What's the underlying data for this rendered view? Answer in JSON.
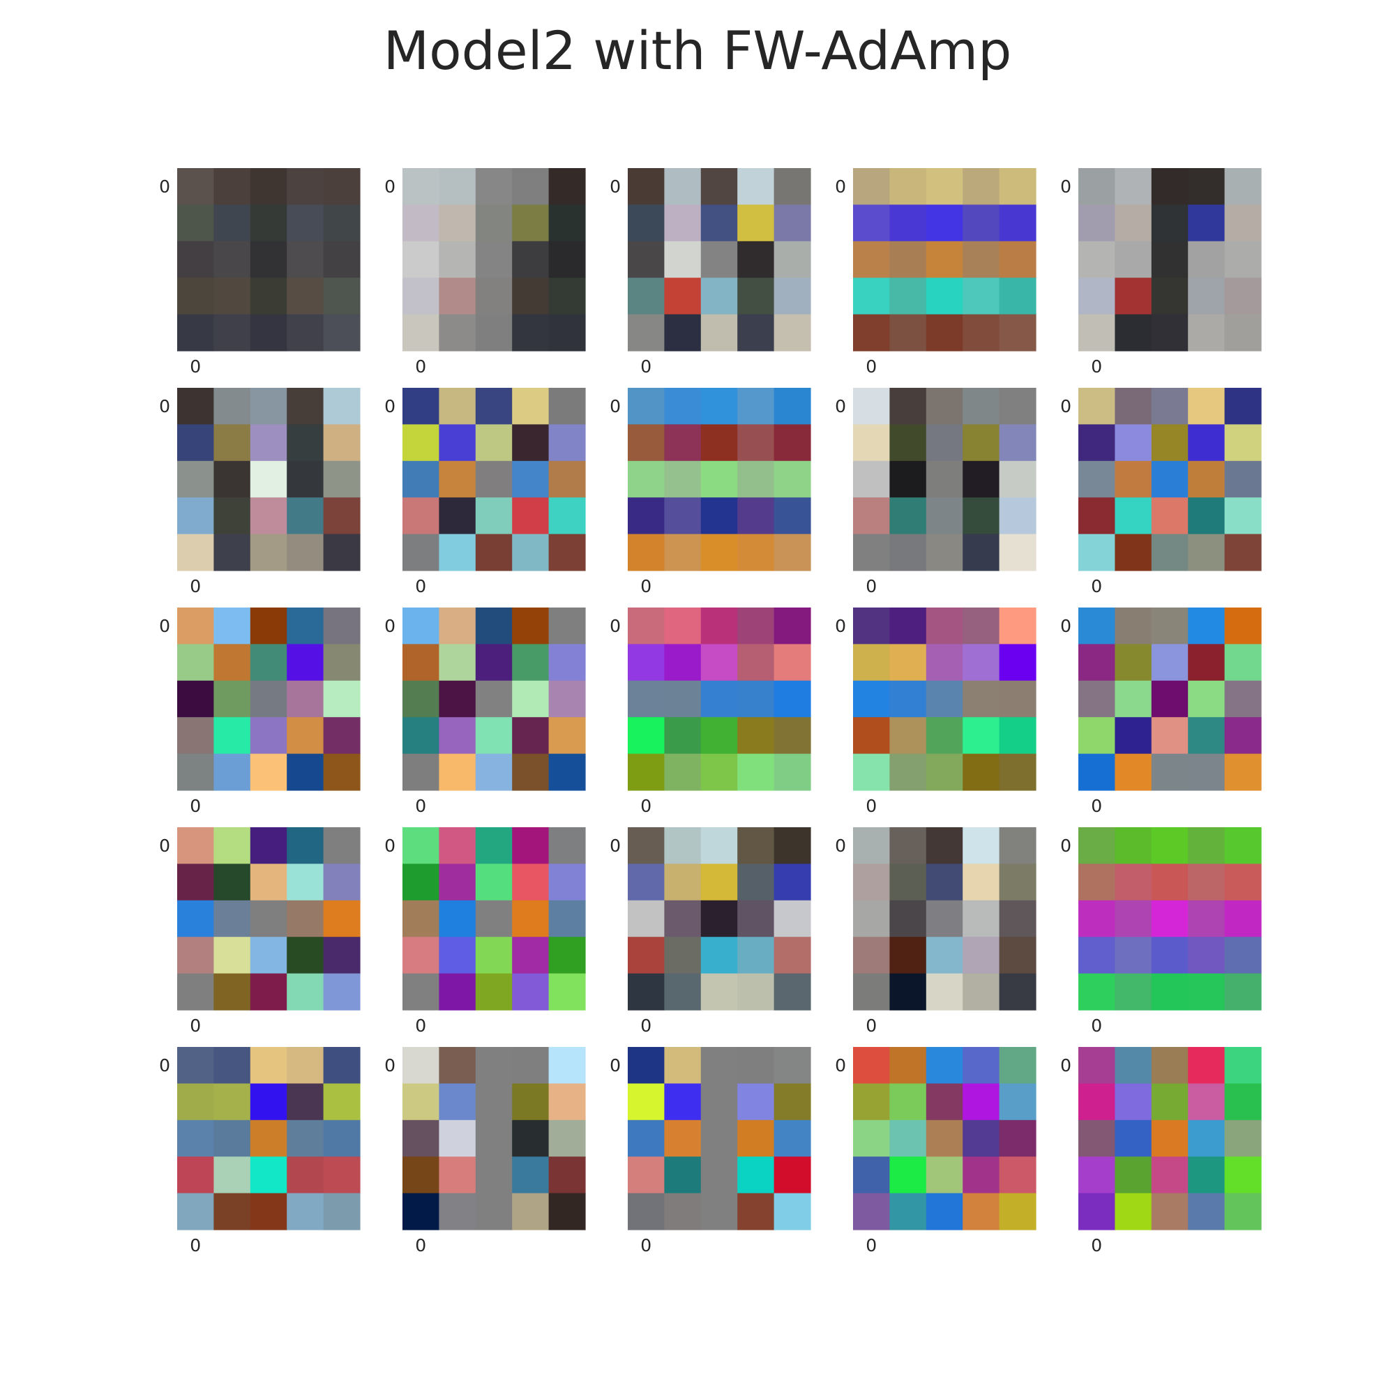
{
  "title": "Model2 with FW-AdAmp",
  "chart_data": {
    "type": "heatmap",
    "title": "Model2 with FW-AdAmp",
    "rows": 5,
    "cols": 5,
    "tick_label": "0",
    "panels": [
      {
        "cells": [
          [
            "#5b514d",
            "#4b403c",
            "#3f3531",
            "#4c4240",
            "#4c403c"
          ],
          [
            "#4e554a",
            "#404650",
            "#353a36",
            "#474c56",
            "#414648"
          ],
          [
            "#433f43",
            "#49474a",
            "#323133",
            "#4e4c4e",
            "#434143"
          ],
          [
            "#4c463c",
            "#514840",
            "#3b3d34",
            "#574d44",
            "#4f5650"
          ],
          [
            "#373a45",
            "#3f404a",
            "#343540",
            "#40414b",
            "#4d4f58"
          ]
        ]
      },
      {
        "cells": [
          [
            "#bbc2c4",
            "#b5bec1",
            "#878787",
            "#7f7f7f",
            "#342b28"
          ],
          [
            "#c2bac4",
            "#c0b8ae",
            "#838580",
            "#7b7d45",
            "#2a3230"
          ],
          [
            "#cacbca",
            "#b5b6b4",
            "#848484",
            "#3d3c3e",
            "#2a292b"
          ],
          [
            "#c2c1c9",
            "#b08b89",
            "#838080",
            "#443b34",
            "#343a34"
          ],
          [
            "#c9c6be",
            "#8c8b8a",
            "#7f7f7f",
            "#33353f",
            "#30333c"
          ]
        ]
      },
      {
        "cells": [
          [
            "#4b3b35",
            "#afbcc2",
            "#514641",
            "#c2d2d9",
            "#777673"
          ],
          [
            "#3c4959",
            "#bcb0c2",
            "#435182",
            "#d1bf42",
            "#7b79a7"
          ],
          [
            "#4a4749",
            "#d1d4cf",
            "#838383",
            "#302c2e",
            "#aaaeab"
          ],
          [
            "#5b8583",
            "#c44235",
            "#82b4c6",
            "#434f42",
            "#a1b0bf"
          ],
          [
            "#878785",
            "#2b2f41",
            "#c0bcae",
            "#3b3f4e",
            "#c5bfb0"
          ]
        ]
      },
      {
        "cells": [
          [
            "#b8a77e",
            "#c9b67a",
            "#d2c07e",
            "#bba97c",
            "#ccbb7b"
          ],
          [
            "#5a4ccd",
            "#4a38d4",
            "#4334e4",
            "#5348be",
            "#4937d2"
          ],
          [
            "#bb814b",
            "#a87e55",
            "#c6843a",
            "#a98158",
            "#b97d45"
          ],
          [
            "#39d1c0",
            "#48b8a7",
            "#28d3bf",
            "#4dc8bb",
            "#39b6a7"
          ],
          [
            "#7f3f2c",
            "#7d5141",
            "#7c3b28",
            "#824c3c",
            "#855848"
          ]
        ]
      },
      {
        "cells": [
          [
            "#9ba0a2",
            "#afb3b6",
            "#332b29",
            "#332e2c",
            "#a8b0b2"
          ],
          [
            "#a29dae",
            "#b5aca5",
            "#2f3336",
            "#30389b",
            "#b5aca5"
          ],
          [
            "#b4b5b3",
            "#a8a9a8",
            "#313131",
            "#a1a2a1",
            "#acadab"
          ],
          [
            "#b1b6c6",
            "#a33333",
            "#353531",
            "#9fa3aa",
            "#a59a9b"
          ],
          [
            "#c1beb5",
            "#2b2d33",
            "#303036",
            "#abaaa6",
            "#a09f9b"
          ]
        ]
      },
      {
        "cells": [
          [
            "#3d3432",
            "#838b8f",
            "#8796a1",
            "#483e39",
            "#afcad7"
          ],
          [
            "#374479",
            "#8b7b44",
            "#9d8fc0",
            "#363e3f",
            "#cfb083"
          ],
          [
            "#8b918c",
            "#3a3533",
            "#e1f0e2",
            "#34383d",
            "#8f9488"
          ],
          [
            "#80aace",
            "#3e4238",
            "#bf8c9b",
            "#437a88",
            "#7b433a"
          ],
          [
            "#dccdae",
            "#3e404c",
            "#a39b86",
            "#948d7f",
            "#3a3944"
          ]
        ]
      },
      {
        "cells": [
          [
            "#323e84",
            "#c7b781",
            "#394581",
            "#dccb83",
            "#7b7b7b"
          ],
          [
            "#c3d53b",
            "#4a3fd5",
            "#bfc883",
            "#39262f",
            "#8184c6"
          ],
          [
            "#427cb7",
            "#c7843d",
            "#807e7e",
            "#4484c8",
            "#b27c4a"
          ],
          [
            "#c97877",
            "#2d293b",
            "#7fcdba",
            "#d23e47",
            "#3ed2c3"
          ],
          [
            "#7d7e7f",
            "#82cce0",
            "#7a3f34",
            "#80b8c5",
            "#7c4134"
          ]
        ]
      },
      {
        "cells": [
          [
            "#5294c6",
            "#3a8cd6",
            "#3192dc",
            "#5599cc",
            "#2b86d1"
          ],
          [
            "#985b3c",
            "#8c3357",
            "#8d3021",
            "#974f52",
            "#882a3a"
          ],
          [
            "#8fd38a",
            "#94c18d",
            "#8adb82",
            "#93bf8d",
            "#8fd389"
          ],
          [
            "#392a85",
            "#554e9a",
            "#233390",
            "#543b8c",
            "#395496"
          ],
          [
            "#d3832b",
            "#cd9350",
            "#da8e29",
            "#d48b37",
            "#c99256"
          ]
        ]
      },
      {
        "cells": [
          [
            "#d6dee4",
            "#483e3b",
            "#7b746f",
            "#808788",
            "#808080"
          ],
          [
            "#e3d7b5",
            "#414b2c",
            "#757880",
            "#888233",
            "#8386b9"
          ],
          [
            "#bfc0bf",
            "#1c1b1e",
            "#7e7e7c",
            "#221c25",
            "#c6ccc5"
          ],
          [
            "#ba807f",
            "#2f7d75",
            "#7d8588",
            "#354b3b",
            "#b6c8dc"
          ],
          [
            "#808080",
            "#77797d",
            "#8a8883",
            "#363c4d",
            "#e5e0d1"
          ]
        ]
      },
      {
        "cells": [
          [
            "#cbbd83",
            "#7a6a77",
            "#7a7a93",
            "#e6c87f",
            "#2e3383"
          ],
          [
            "#3f287e",
            "#8c8ade",
            "#968626",
            "#3e2ed1",
            "#d1d27e"
          ],
          [
            "#798896",
            "#c17a40",
            "#2b7ed6",
            "#bf7f3b",
            "#6b7892"
          ],
          [
            "#8a2a31",
            "#35d3c2",
            "#dc7868",
            "#1f7b79",
            "#89dec7"
          ],
          [
            "#84d3d7",
            "#803419",
            "#748884",
            "#8b907f",
            "#7f4438"
          ]
        ]
      },
      {
        "cells": [
          [
            "#db9d64",
            "#7cbcf0",
            "#8a3a07",
            "#2a6a99",
            "#777480"
          ],
          [
            "#98cb88",
            "#c07732",
            "#428c77",
            "#5510e6",
            "#868872"
          ],
          [
            "#3c0c40",
            "#6f9a60",
            "#767a83",
            "#a7759c",
            "#b7ecc0"
          ],
          [
            "#8a7575",
            "#26eaa5",
            "#8c75c2",
            "#d28e44",
            "#732f65"
          ],
          [
            "#7d8383",
            "#6c9ed6",
            "#fbc176",
            "#164890",
            "#8f561c"
          ]
        ]
      },
      {
        "cells": [
          [
            "#6bb3ec",
            "#d9ae84",
            "#214c7c",
            "#954208",
            "#7f7f80"
          ],
          [
            "#b0642a",
            "#add59c",
            "#4c1f7d",
            "#489a67",
            "#8281d6"
          ],
          [
            "#547d52",
            "#4b1444",
            "#818181",
            "#b2eab6",
            "#a885b0"
          ],
          [
            "#26807f",
            "#9765bd",
            "#80e1b2",
            "#662550",
            "#d99b50"
          ],
          [
            "#7e7e7e",
            "#f8b96b",
            "#86b3e0",
            "#7b512b",
            "#154f99"
          ]
        ]
      },
      {
        "cells": [
          [
            "#c96b7b",
            "#e0657f",
            "#b83179",
            "#9e4378",
            "#851a7e"
          ],
          [
            "#9239e4",
            "#9a1bc9",
            "#c54cc4",
            "#b65e72",
            "#e47c7b"
          ],
          [
            "#6b8299",
            "#6c8296",
            "#3680d2",
            "#3680cc",
            "#1f7de1"
          ],
          [
            "#18f35d",
            "#3a9c4a",
            "#41b134",
            "#8a7b1f",
            "#807334"
          ],
          [
            "#7f9d12",
            "#80b361",
            "#7dc64a",
            "#80e17c",
            "#80cd86"
          ]
        ]
      },
      {
        "cells": [
          [
            "#513381",
            "#4f1f80",
            "#a45581",
            "#96607f",
            "#fe9a80"
          ],
          [
            "#ceb04d",
            "#e0af52",
            "#a660b3",
            "#a06fd3",
            "#6b00f0"
          ],
          [
            "#2383e1",
            "#3280d4",
            "#5a84ae",
            "#8c8073",
            "#8c7f72"
          ],
          [
            "#b04e1e",
            "#ad925b",
            "#52a45b",
            "#2eef8f",
            "#14cf88"
          ],
          [
            "#85e3ab",
            "#84a06e",
            "#83a95d",
            "#826c14",
            "#7f6f2f"
          ]
        ]
      },
      {
        "cells": [
          [
            "#2b8ad6",
            "#897e72",
            "#8a8579",
            "#238ae3",
            "#d56c10"
          ],
          [
            "#8a2883",
            "#87892e",
            "#8a95dd",
            "#8b212c",
            "#72d88e"
          ],
          [
            "#857483",
            "#8bd98c",
            "#6e0d6d",
            "#8bdb84",
            "#857485"
          ],
          [
            "#8fd76a",
            "#2e2190",
            "#e19183",
            "#2e8985",
            "#8a2a8a"
          ],
          [
            "#1670d4",
            "#e38826",
            "#7c858a",
            "#7c858b",
            "#e0902e"
          ]
        ]
      },
      {
        "cells": [
          [
            "#d8957e",
            "#b4dc80",
            "#461e7e",
            "#216783",
            "#7f7f7f"
          ],
          [
            "#682448",
            "#26492b",
            "#e4b67d",
            "#9ae2d8",
            "#8381bc"
          ],
          [
            "#2981dc",
            "#6b7f98",
            "#7f7f7f",
            "#967a67",
            "#dd7d20"
          ],
          [
            "#b38080",
            "#d8df98",
            "#83b6e3",
            "#284b24",
            "#4a2a6a"
          ],
          [
            "#7f7f7f",
            "#7f6423",
            "#7e1c4b",
            "#84d9b5",
            "#8097d7"
          ]
        ]
      },
      {
        "cells": [
          [
            "#5ddd7d",
            "#d15882",
            "#22a781",
            "#a4157b",
            "#7e7f80"
          ],
          [
            "#1e9c2d",
            "#9f2d9d",
            "#55de7e",
            "#e85663",
            "#8181d5"
          ],
          [
            "#a27d5a",
            "#1f80df",
            "#808080",
            "#df7d1e",
            "#5d7fa2"
          ],
          [
            "#d77d81",
            "#5f5de3",
            "#82d854",
            "#a12ba4",
            "#2fa021"
          ],
          [
            "#808080",
            "#7e17a6",
            "#7fa721",
            "#8259d7",
            "#80e25d"
          ]
        ]
      },
      {
        "cells": [
          [
            "#675d53",
            "#b1c5c5",
            "#bfd6da",
            "#625645",
            "#3d342b"
          ],
          [
            "#6169aa",
            "#c8b06f",
            "#d4b837",
            "#566068",
            "#363dae"
          ],
          [
            "#c2c2c2",
            "#6b5a6b",
            "#2b202d",
            "#605364",
            "#c7c8cb"
          ],
          [
            "#aa433b",
            "#6b6d64",
            "#38afcc",
            "#68adc2",
            "#b46e69"
          ],
          [
            "#2e3642",
            "#59676f",
            "#c4c5b1",
            "#bbbfac",
            "#5a676f"
          ]
        ]
      },
      {
        "cells": [
          [
            "#a9b1b0",
            "#67605b",
            "#433835",
            "#cfe3ea",
            "#81817d"
          ],
          [
            "#ada09e",
            "#5c5f54",
            "#414b74",
            "#e6d5ae",
            "#7c7b66"
          ],
          [
            "#a7a8a5",
            "#4b4649",
            "#7e7e83",
            "#b9bbbb",
            "#5f5759"
          ],
          [
            "#9e7b79",
            "#502213",
            "#84b7cc",
            "#b0a5b5",
            "#5d4b41"
          ],
          [
            "#7c7c7b",
            "#0b162a",
            "#d6d5c6",
            "#b1b0a2",
            "#393b44"
          ]
        ]
      },
      {
        "cells": [
          [
            "#6aac46",
            "#5bbb2b",
            "#5cc926",
            "#62b23b",
            "#58c82f"
          ],
          [
            "#b07260",
            "#c25e6a",
            "#c85755",
            "#bc6668",
            "#c95b5a"
          ],
          [
            "#be2ebe",
            "#ae44b2",
            "#d426d6",
            "#ae44b2",
            "#c127c2"
          ],
          [
            "#615ecd",
            "#6e6fbe",
            "#5b5bcb",
            "#7157c0",
            "#5f6db1"
          ],
          [
            "#2fcf5e",
            "#43b86a",
            "#23c759",
            "#27c65b",
            "#44b06b"
          ]
        ]
      },
      {
        "cells": [
          [
            "#526286",
            "#465680",
            "#e5c47f",
            "#d5b981",
            "#3f4f80"
          ],
          [
            "#a0ac4a",
            "#a5b14b",
            "#3212ee",
            "#4a3652",
            "#a9c040"
          ],
          [
            "#5a82ab",
            "#5a7b9b",
            "#cd7e29",
            "#5f7e9c",
            "#5179a6"
          ],
          [
            "#bd4555",
            "#aad0b6",
            "#12e7c7",
            "#b3474f",
            "#bc4b53"
          ],
          [
            "#80a7bd",
            "#7b4126",
            "#853819",
            "#82a9c4",
            "#7c9cae"
          ]
        ]
      },
      {
        "cells": [
          [
            "#d8d8d0",
            "#7a5e52",
            "#808080",
            "#7f7f7f",
            "#b6e4fa"
          ],
          [
            "#ccca82",
            "#6b88cd",
            "#808080",
            "#7b7924",
            "#e7b386"
          ],
          [
            "#655160",
            "#cfd2dc",
            "#808080",
            "#282d2f",
            "#a1ad99"
          ],
          [
            "#764618",
            "#d77e7d",
            "#808080",
            "#397a9d",
            "#7a3434"
          ],
          [
            "#011a47",
            "#818186",
            "#808080",
            "#afa586",
            "#332724"
          ]
        ]
      },
      {
        "cells": [
          [
            "#1e3484",
            "#d3bb7b",
            "#808080",
            "#7f7f7f",
            "#848585"
          ],
          [
            "#d6f52e",
            "#3e2ef0",
            "#808080",
            "#8284e2",
            "#857c2a"
          ],
          [
            "#3e79bf",
            "#d7802f",
            "#808080",
            "#d17d24",
            "#4384c4"
          ],
          [
            "#d47f7b",
            "#1d7b7b",
            "#808080",
            "#0bd3c3",
            "#d20d2b"
          ],
          [
            "#727378",
            "#807c7c",
            "#808080",
            "#85422f",
            "#7fcde6"
          ]
        ]
      },
      {
        "cells": [
          [
            "#dd4e3f",
            "#c07427",
            "#2987dc",
            "#5768ca",
            "#63a886"
          ],
          [
            "#97a434",
            "#7bcb5b",
            "#843962",
            "#af16df",
            "#589ec8"
          ],
          [
            "#8bd385",
            "#6cc3af",
            "#ad7f54",
            "#533a92",
            "#7c2c6a"
          ],
          [
            "#3f62aa",
            "#1ceb45",
            "#a1c679",
            "#a2338b",
            "#cb5967"
          ],
          [
            "#7e5ba0",
            "#3396a5",
            "#2176d8",
            "#d3823d",
            "#c3af28"
          ]
        ]
      },
      {
        "cells": [
          [
            "#a63e93",
            "#548aa8",
            "#9a7d55",
            "#e72a5c",
            "#3cd47e"
          ],
          [
            "#cf2090",
            "#7f6ade",
            "#77aa32",
            "#ca5ca2",
            "#29c04f"
          ],
          [
            "#835875",
            "#3461c4",
            "#da7a22",
            "#3c9ccf",
            "#8aa57b"
          ],
          [
            "#a53ecb",
            "#5ba330",
            "#c54987",
            "#1e9781",
            "#63df2a"
          ],
          [
            "#7b2dc0",
            "#a1d816",
            "#aa7b64",
            "#5a7aab",
            "#64c45c"
          ]
        ]
      }
    ]
  }
}
